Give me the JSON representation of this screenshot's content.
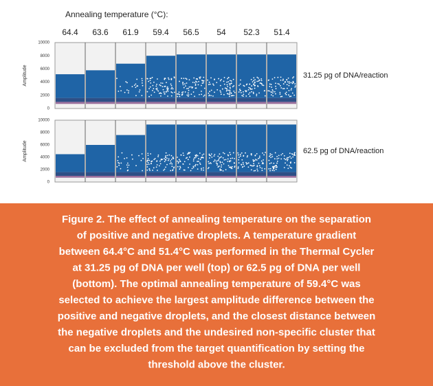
{
  "header": {
    "axis_title": "Annealing temperature (°C):",
    "temperatures": [
      "64.4",
      "63.6",
      "61.9",
      "59.4",
      "56.5",
      "54",
      "52.3",
      "51.4"
    ]
  },
  "panels": [
    {
      "y_axis_label": "Amplitude",
      "yticks": [
        "10000",
        "8000",
        "6000",
        "4000",
        "2000",
        "0"
      ],
      "label": "31.25 pg of DNA/reaction"
    },
    {
      "y_axis_label": "Amplitude",
      "yticks": [
        "10000",
        "8000",
        "6000",
        "4000",
        "2000",
        "0"
      ],
      "label": "62.5 pg of DNA/reaction"
    }
  ],
  "caption": {
    "lines": [
      "Figure 2. The effect of annealing temperature on the separation",
      "of positive and negative droplets. A temperature gradient",
      "between 64.4°C and 51.4°C was performed in the Thermal Cycler",
      "at 31.25 pg of DNA per well (top) or 62.5 pg of DNA per well",
      "(bottom). The optimal annealing temperature of 59.4°C was",
      "selected to achieve the largest amplitude difference between the",
      "positive and negative droplets, and the closest distance between",
      "the negative droplets and the undesired non-specific cluster that",
      "can be excluded from the target quantification by setting the",
      "threshold above the cluster."
    ]
  }
}
